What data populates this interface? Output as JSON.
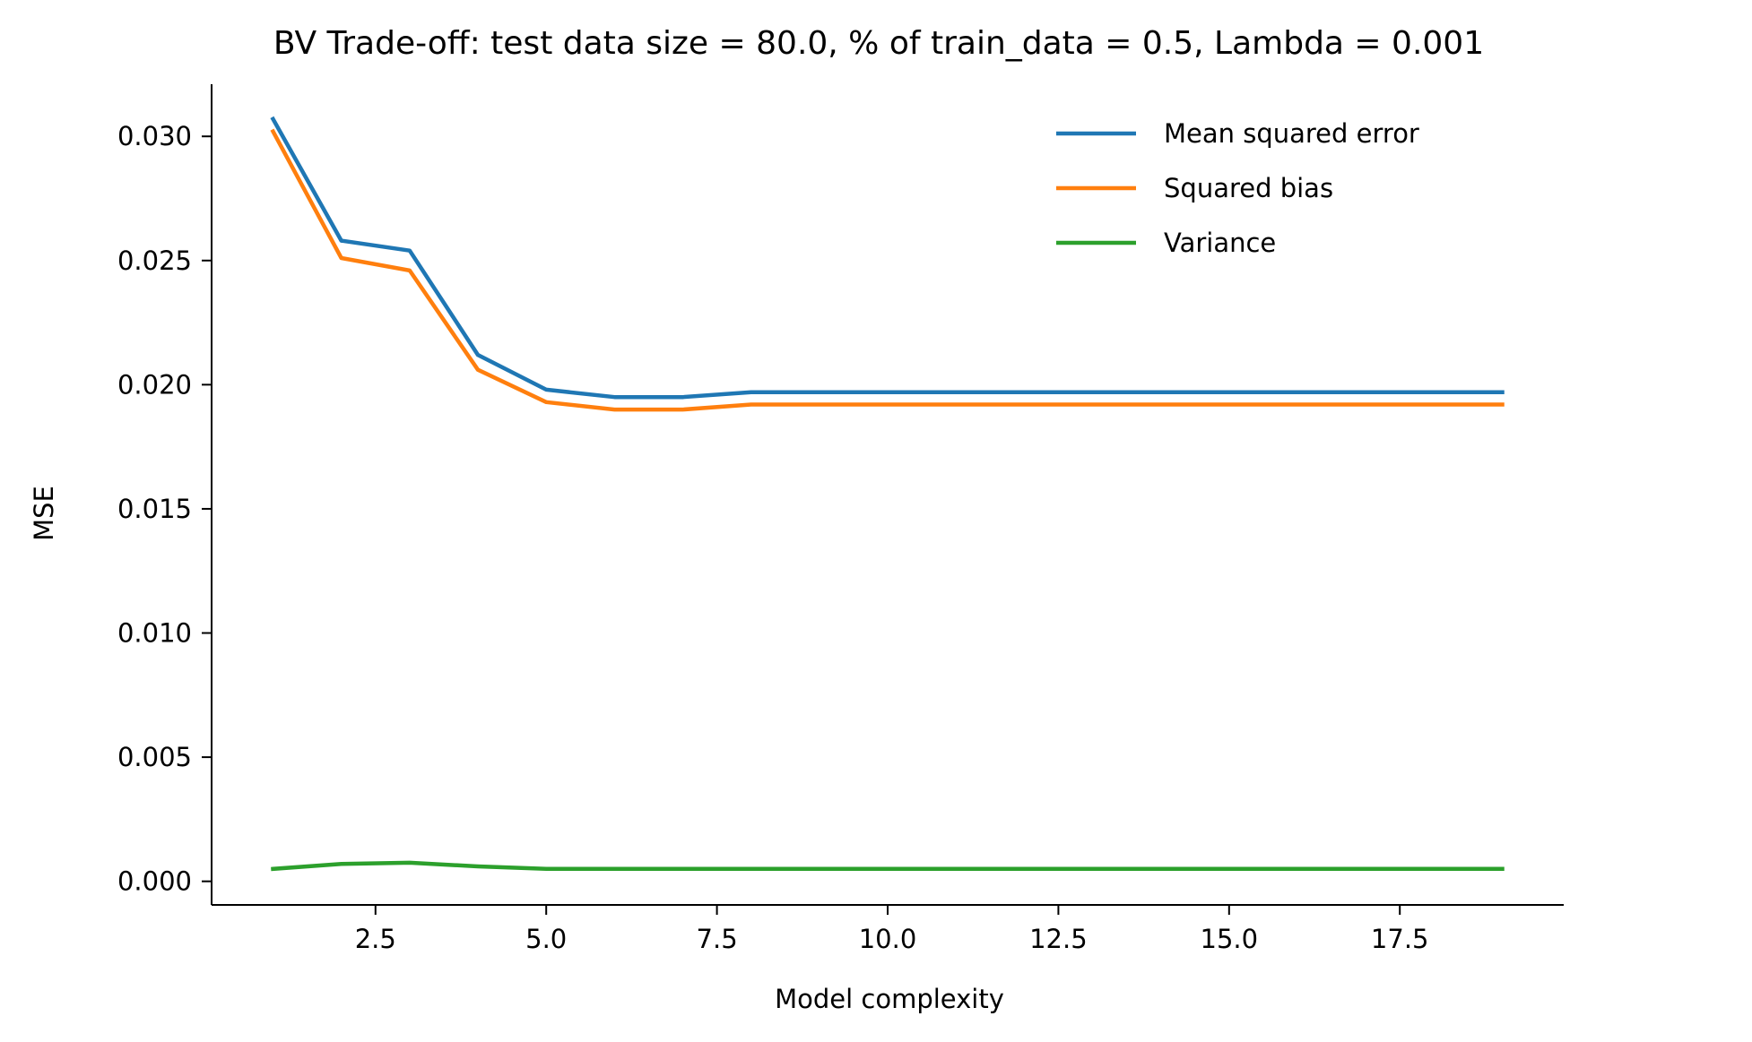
{
  "chart_data": {
    "type": "line",
    "title": "BV Trade-off: test data size = 80.0, % of train_data = 0.5, Lambda = 0.001",
    "xlabel": "Model complexity",
    "ylabel": "MSE",
    "xlim": [
      0.1,
      19.9
    ],
    "ylim": [
      -0.00095,
      0.0321
    ],
    "x_ticks": [
      2.5,
      5.0,
      7.5,
      10.0,
      12.5,
      15.0,
      17.5
    ],
    "x_tick_labels": [
      "2.5",
      "5.0",
      "7.5",
      "10.0",
      "12.5",
      "15.0",
      "17.5"
    ],
    "y_ticks": [
      0.0,
      0.005,
      0.01,
      0.015,
      0.02,
      0.025,
      0.03
    ],
    "y_tick_labels": [
      "0.000",
      "0.005",
      "0.010",
      "0.015",
      "0.020",
      "0.025",
      "0.030"
    ],
    "grid": false,
    "legend_position": "top-right",
    "x": [
      1,
      2,
      3,
      4,
      5,
      6,
      7,
      8,
      9,
      10,
      11,
      12,
      13,
      14,
      15,
      16,
      17,
      18,
      19
    ],
    "series": [
      {
        "name": "Mean squared error",
        "color": "#1f77b4",
        "values": [
          0.0307,
          0.0258,
          0.0254,
          0.0212,
          0.0198,
          0.0195,
          0.0195,
          0.0197,
          0.0197,
          0.0197,
          0.0197,
          0.0197,
          0.0197,
          0.0197,
          0.0197,
          0.0197,
          0.0197,
          0.0197,
          0.0197
        ]
      },
      {
        "name": "Squared bias",
        "color": "#ff7f0e",
        "values": [
          0.0302,
          0.0251,
          0.0246,
          0.0206,
          0.0193,
          0.019,
          0.019,
          0.0192,
          0.0192,
          0.0192,
          0.0192,
          0.0192,
          0.0192,
          0.0192,
          0.0192,
          0.0192,
          0.0192,
          0.0192,
          0.0192
        ]
      },
      {
        "name": "Variance",
        "color": "#2ca02c",
        "values": [
          0.0005,
          0.0007,
          0.00075,
          0.0006,
          0.0005,
          0.0005,
          0.0005,
          0.0005,
          0.0005,
          0.0005,
          0.0005,
          0.0005,
          0.0005,
          0.0005,
          0.0005,
          0.0005,
          0.0005,
          0.0005,
          0.0005
        ]
      }
    ]
  }
}
